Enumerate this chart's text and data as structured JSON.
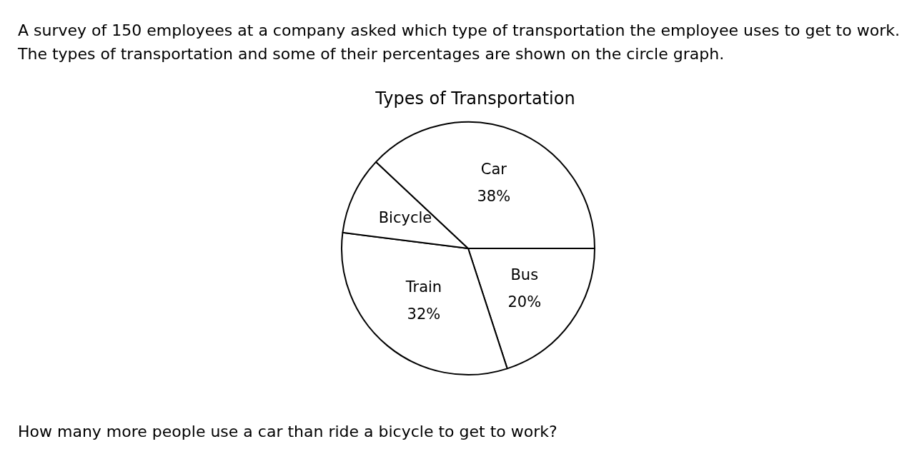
{
  "chart_data": {
    "type": "pie",
    "title": "Types of Transportation",
    "categories": [
      "Bus",
      "Train",
      "Bicycle",
      "Car"
    ],
    "values": [
      20,
      32,
      10,
      38
    ],
    "value_labels": [
      "20%",
      "32%",
      null,
      "38%"
    ],
    "colors": [
      "#ffffff",
      "#ffffff",
      "#ffffff",
      "#ffffff"
    ],
    "annotations": [
      "A survey of 150 employees at a company asked which type of transportation the employee uses to get to work. The types of transportation and some of their percentages are shown on the circle graph.",
      "How many more people use a car than ride a bicycle to get to work?"
    ]
  }
}
